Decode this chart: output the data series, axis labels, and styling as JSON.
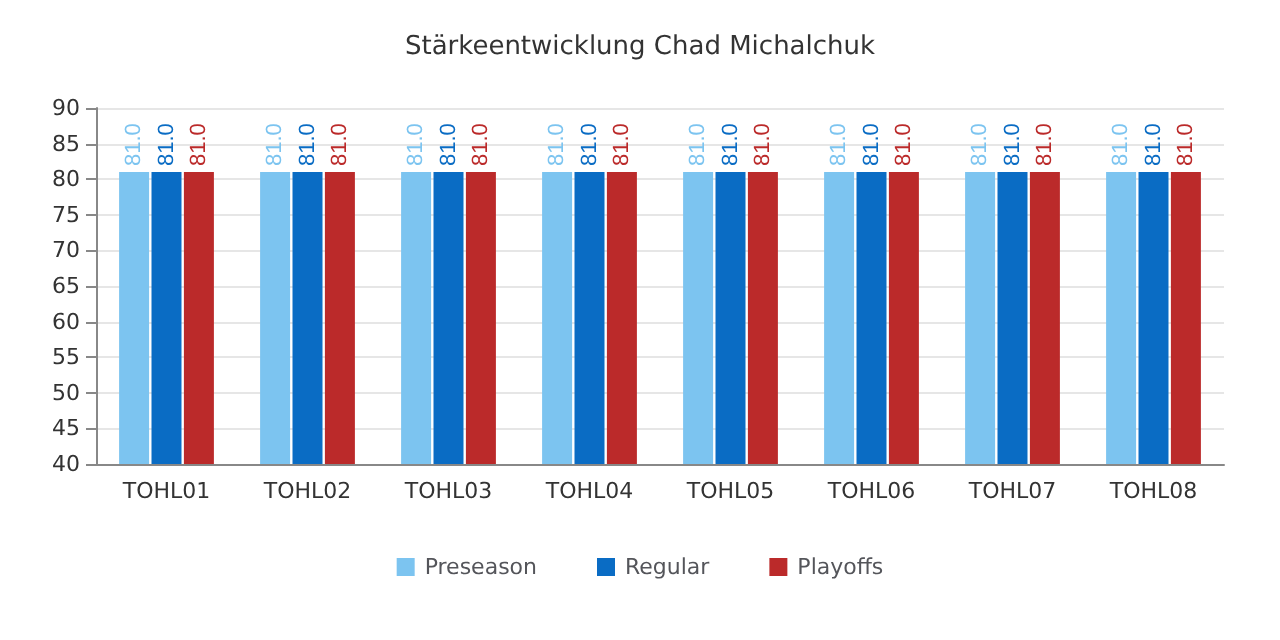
{
  "chart_data": {
    "type": "bar",
    "title": "Stärkeentwicklung Chad Michalchuk",
    "categories": [
      "TOHL01",
      "TOHL02",
      "TOHL03",
      "TOHL04",
      "TOHL05",
      "TOHL06",
      "TOHL07",
      "TOHL08"
    ],
    "series": [
      {
        "name": "Preseason",
        "color": "#7cc4f0",
        "values": [
          81,
          81,
          81,
          81,
          81,
          81,
          81,
          81
        ],
        "value_labels": [
          "81.0",
          "81.0",
          "81.0",
          "81.0",
          "81.0",
          "81.0",
          "81.0",
          "81.0"
        ]
      },
      {
        "name": "Regular",
        "color": "#0a6cc4",
        "values": [
          81,
          81,
          81,
          81,
          81,
          81,
          81,
          81
        ],
        "value_labels": [
          "81.0",
          "81.0",
          "81.0",
          "81.0",
          "81.0",
          "81.0",
          "81.0",
          "81.0"
        ]
      },
      {
        "name": "Playoffs",
        "color": "#bb2a2a",
        "values": [
          81,
          81,
          81,
          81,
          81,
          81,
          81,
          81
        ],
        "value_labels": [
          "81.0",
          "81.0",
          "81.0",
          "81.0",
          "81.0",
          "81.0",
          "81.0",
          "81.0"
        ]
      }
    ],
    "ylim": [
      40,
      90
    ],
    "yticks": [
      40,
      45,
      50,
      55,
      60,
      65,
      70,
      75,
      80,
      85,
      90
    ],
    "grid": "y",
    "legend": "bottom"
  }
}
